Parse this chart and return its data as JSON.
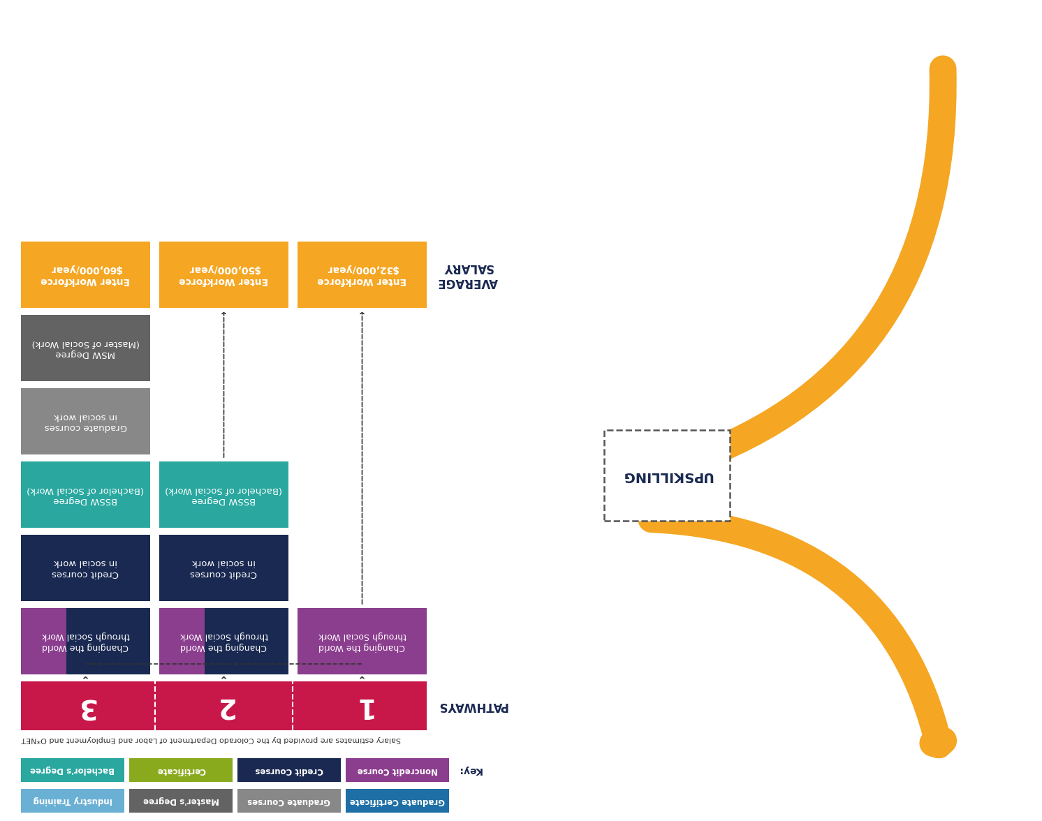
{
  "bg_color": "#ffffff",
  "navy_color": "#1a2951",
  "orange_color": "#f5a623",
  "teal_color": "#2aa8a0",
  "purple_color": "#8b3d8e",
  "gray_dark_color": "#636363",
  "gray_med_color": "#888888",
  "red_color": "#c8184a",
  "green_color": "#8aaa1e",
  "blue_light_color": "#6ab0d4",
  "blue_color": "#1e6fa5",
  "pathway_bar_color": "#c8184a",
  "pathway_numbers": [
    "3",
    "2",
    "1"
  ],
  "salary_texts": [
    "Enter Workforce\n$60,000/year",
    "Enter Workforce\n$50,000/year",
    "Enter Workforce\n$32,000/year"
  ],
  "key_items_row1": [
    {
      "label": "Bachelor's Degree",
      "color": "#2aa8a0"
    },
    {
      "label": "Certificate",
      "color": "#8aaa1e"
    },
    {
      "label": "Credit Courses",
      "color": "#1a2951"
    },
    {
      "label": "Noncredit Course",
      "color": "#8b3d8e"
    }
  ],
  "key_items_row2": [
    {
      "label": "Industry Training",
      "color": "#6ab0d4"
    },
    {
      "label": "Master's Degree",
      "color": "#636363"
    },
    {
      "label": "Graduate Courses",
      "color": "#888888"
    },
    {
      "label": "Graduate Certificate",
      "color": "#1e6fa5"
    }
  ],
  "salary_note": "Salary estimates are provided by the Colorado Department of Labor and Employment and O*NET"
}
